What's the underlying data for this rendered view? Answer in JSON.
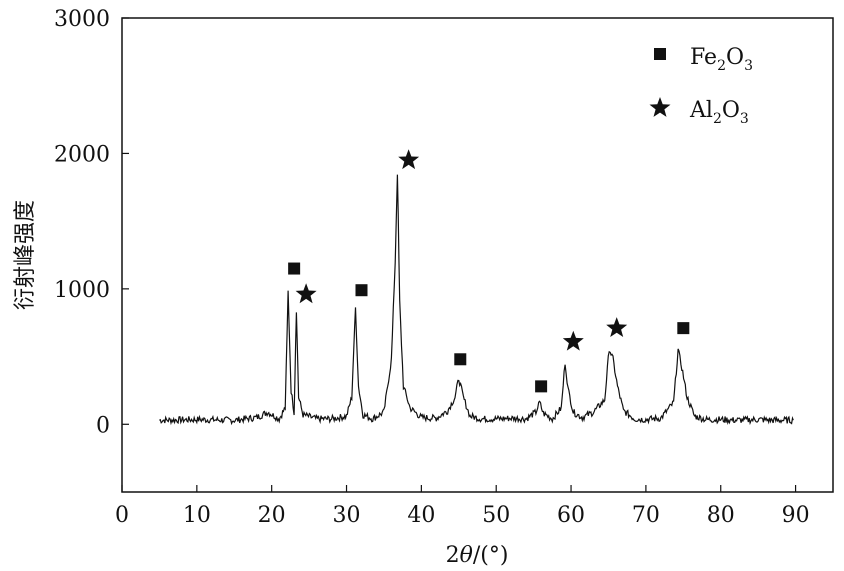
{
  "chart_data": {
    "type": "line",
    "title": "",
    "xlabel_prefix": "2",
    "xlabel_theta": "θ",
    "xlabel_suffix": "/(°)",
    "ylabel": "衍射峰强度",
    "xlim": [
      0,
      95
    ],
    "ylim": [
      -500,
      3000
    ],
    "xticks": [
      0,
      10,
      20,
      30,
      40,
      50,
      60,
      70,
      80,
      90
    ],
    "yticks": [
      0,
      1000,
      2000,
      3000
    ],
    "grid": false,
    "legend_position": "top-right",
    "legend": [
      {
        "marker": "square",
        "base1": "Fe",
        "sub1": "2",
        "base2": "O",
        "sub2": "3"
      },
      {
        "marker": "star",
        "base1": "Al",
        "sub1": "2",
        "base2": "O",
        "sub2": "3"
      }
    ],
    "series": [
      {
        "x": [
          5,
          10,
          15,
          18,
          19.5,
          21,
          21.8,
          22.2,
          22.6,
          23.0,
          23.3,
          23.6,
          24.2,
          26,
          28,
          30,
          30.7,
          31.2,
          31.6,
          32.2,
          33.5,
          35,
          36.0,
          36.5,
          36.8,
          37.1,
          37.6,
          38.5,
          40,
          42,
          43.5,
          44.5,
          45.0,
          45.6,
          46.5,
          48,
          50,
          52,
          54,
          55.3,
          55.8,
          56.3,
          57.5,
          58.7,
          59.2,
          59.6,
          60.3,
          61.5,
          63,
          64.5,
          65.1,
          65.6,
          66.2,
          67,
          68.5,
          70,
          72,
          73.7,
          74.3,
          74.8,
          75.5,
          76.5,
          78,
          80,
          82,
          85,
          87,
          89.7
        ],
        "y": [
          30,
          35,
          30,
          50,
          90,
          40,
          120,
          980,
          250,
          90,
          850,
          200,
          70,
          40,
          40,
          60,
          200,
          860,
          280,
          70,
          40,
          90,
          480,
          1200,
          1860,
          900,
          280,
          120,
          50,
          45,
          100,
          200,
          340,
          200,
          60,
          40,
          40,
          45,
          40,
          90,
          160,
          80,
          40,
          120,
          460,
          260,
          90,
          50,
          90,
          180,
          560,
          480,
          280,
          100,
          40,
          35,
          45,
          160,
          550,
          420,
          200,
          60,
          35,
          35,
          30,
          35,
          30,
          30
        ]
      }
    ],
    "markers": [
      {
        "type": "square",
        "x": 23.0,
        "y": 1150
      },
      {
        "type": "star",
        "x": 24.6,
        "y": 960
      },
      {
        "type": "square",
        "x": 32.0,
        "y": 990
      },
      {
        "type": "star",
        "x": 38.3,
        "y": 1950
      },
      {
        "type": "square",
        "x": 45.2,
        "y": 480
      },
      {
        "type": "square",
        "x": 56.0,
        "y": 280
      },
      {
        "type": "star",
        "x": 60.3,
        "y": 610
      },
      {
        "type": "star",
        "x": 66.1,
        "y": 710
      },
      {
        "type": "square",
        "x": 75.0,
        "y": 710
      }
    ]
  }
}
